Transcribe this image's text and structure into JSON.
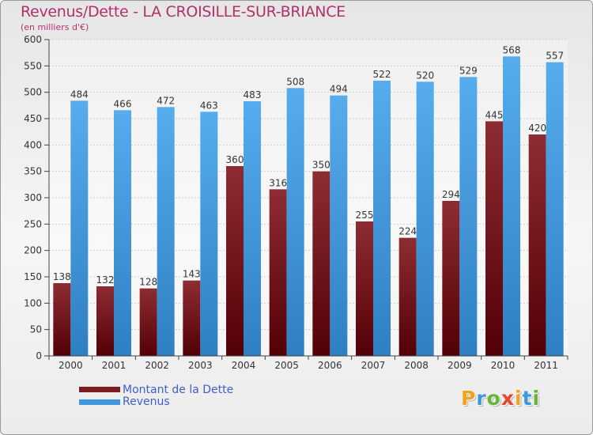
{
  "header": {
    "title": "Revenus/Dette - LA CROISILLE-SUR-BRIANCE",
    "subtitle": "(en milliers d'€)"
  },
  "colors": {
    "debt": "#7a1d22",
    "revenue": "#3f97dc",
    "title": "#b1306a",
    "legend_text": "#3d5fc9"
  },
  "legend": {
    "items": [
      {
        "label": "Montant de la Dette",
        "color": "#7a1d22"
      },
      {
        "label": "Revenus",
        "color": "#3f97dc"
      }
    ]
  },
  "logo": {
    "letters": [
      "P",
      "r",
      "o",
      "x",
      "i",
      "t",
      "i"
    ]
  },
  "chart_data": {
    "type": "bar",
    "title": "Revenus/Dette - LA CROISILLE-SUR-BRIANCE",
    "ylabel": "(en milliers d'€)",
    "xlabel": "",
    "categories": [
      "2000",
      "2001",
      "2002",
      "2003",
      "2004",
      "2005",
      "2006",
      "2007",
      "2008",
      "2009",
      "2010",
      "2011"
    ],
    "series": [
      {
        "name": "Montant de la Dette",
        "values": [
          138,
          132,
          128,
          143,
          360,
          316,
          350,
          255,
          224,
          294,
          445,
          420
        ]
      },
      {
        "name": "Revenus",
        "values": [
          484,
          466,
          472,
          463,
          483,
          508,
          494,
          522,
          520,
          529,
          568,
          557
        ]
      }
    ],
    "ylim": [
      0,
      600
    ],
    "yticks": [
      0,
      50,
      100,
      150,
      200,
      250,
      300,
      350,
      400,
      450,
      500,
      550,
      600
    ],
    "grid": true,
    "legend_position": "bottom-left"
  }
}
